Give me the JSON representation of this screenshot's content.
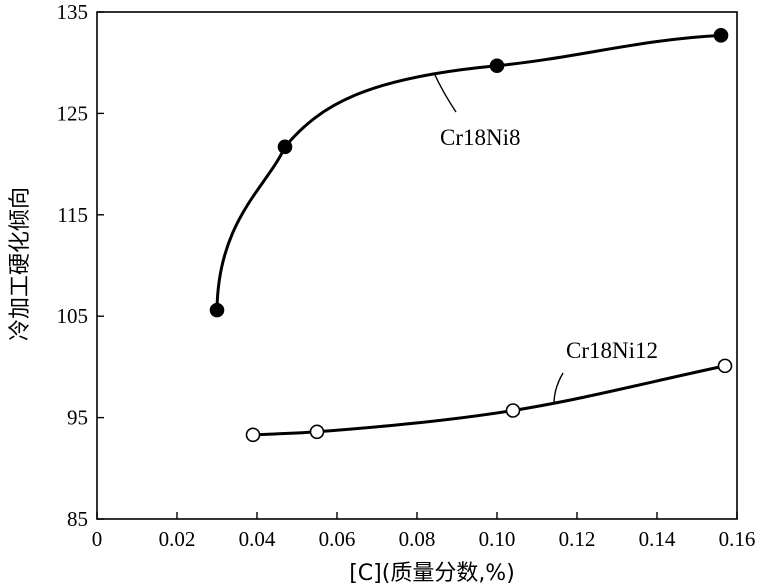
{
  "chart_data": {
    "type": "line",
    "xlabel": "[C](质量分数,%)",
    "ylabel": "冷加工硬化倾向",
    "xlim": [
      0,
      0.16
    ],
    "ylim": [
      85,
      135
    ],
    "x_ticks": [
      "0",
      "0.02",
      "0.04",
      "0.06",
      "0.08",
      "0.10",
      "0.12",
      "0.14",
      "0.16"
    ],
    "y_ticks": [
      "85",
      "95",
      "105",
      "115",
      "125",
      "135"
    ],
    "grid": false,
    "series": [
      {
        "name": "Cr18Ni8",
        "marker": "filled-circle",
        "x": [
          0.03,
          0.047,
          0.1,
          0.156
        ],
        "y": [
          105.6,
          121.7,
          129.7,
          132.7
        ]
      },
      {
        "name": "Cr18Ni12",
        "marker": "open-circle",
        "x": [
          0.039,
          0.055,
          0.104,
          0.157
        ],
        "y": [
          93.3,
          93.6,
          95.7,
          100.1
        ]
      }
    ]
  }
}
